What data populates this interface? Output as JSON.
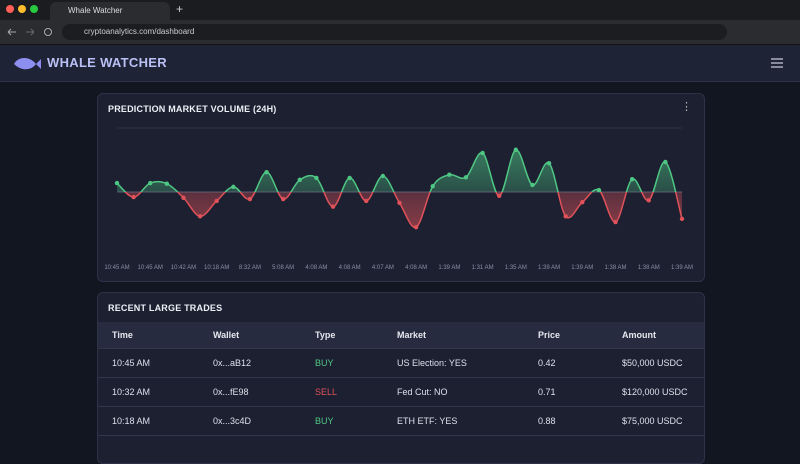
{
  "browser": {
    "tab_title": "Whale Watcher",
    "url": "cryptoanalytics.com/dashboard"
  },
  "header": {
    "title": "WHALE WATCHER"
  },
  "chart": {
    "type": "line",
    "title": "PREDICTION MARKET VOLUME (24H)",
    "x_labels": [
      "10:45 AM",
      "10:45 AM",
      "10:42 AM",
      "10:18 AM",
      "8:32 AM",
      "5:08 AM",
      "4:08 AM",
      "4:08 AM",
      "4:07 AM",
      "4:08 AM",
      "1:39 AM",
      "1:31 AM",
      "1:35 AM",
      "1:39 AM",
      "1:39 AM",
      "1:38 AM",
      "1:38 AM",
      "1:39 AM"
    ],
    "values": [
      0.14,
      -0.08,
      0.14,
      0.13,
      -0.09,
      -0.38,
      -0.14,
      0.08,
      -0.11,
      0.31,
      -0.11,
      0.19,
      0.22,
      -0.23,
      0.22,
      -0.14,
      0.25,
      -0.17,
      -0.55,
      0.09,
      0.27,
      0.23,
      0.61,
      -0.06,
      0.66,
      0.11,
      0.45,
      -0.38,
      -0.16,
      0.03,
      -0.47,
      0.2,
      -0.13,
      0.47,
      -0.42
    ],
    "ylim": [
      -1,
      1
    ],
    "up_color": "#4fc784",
    "down_color": "#e0525a"
  },
  "trades": {
    "title": "RECENT LARGE TRADES",
    "columns": [
      "Time",
      "Wallet",
      "Type",
      "Market",
      "Price",
      "Amount"
    ],
    "rows": [
      [
        "10:45 AM",
        "0x...aB12",
        "BUY",
        "US Election: YES",
        "0.42",
        "$50,000 USDC"
      ],
      [
        "10:32 AM",
        "0x...fE98",
        "SELL",
        "Fed Cut: NO",
        "0.71",
        "$120,000 USDC"
      ],
      [
        "10:18 AM",
        "0x...3c4D",
        "BUY",
        "ETH ETF: YES",
        "0.88",
        "$75,000 USDC"
      ]
    ]
  }
}
